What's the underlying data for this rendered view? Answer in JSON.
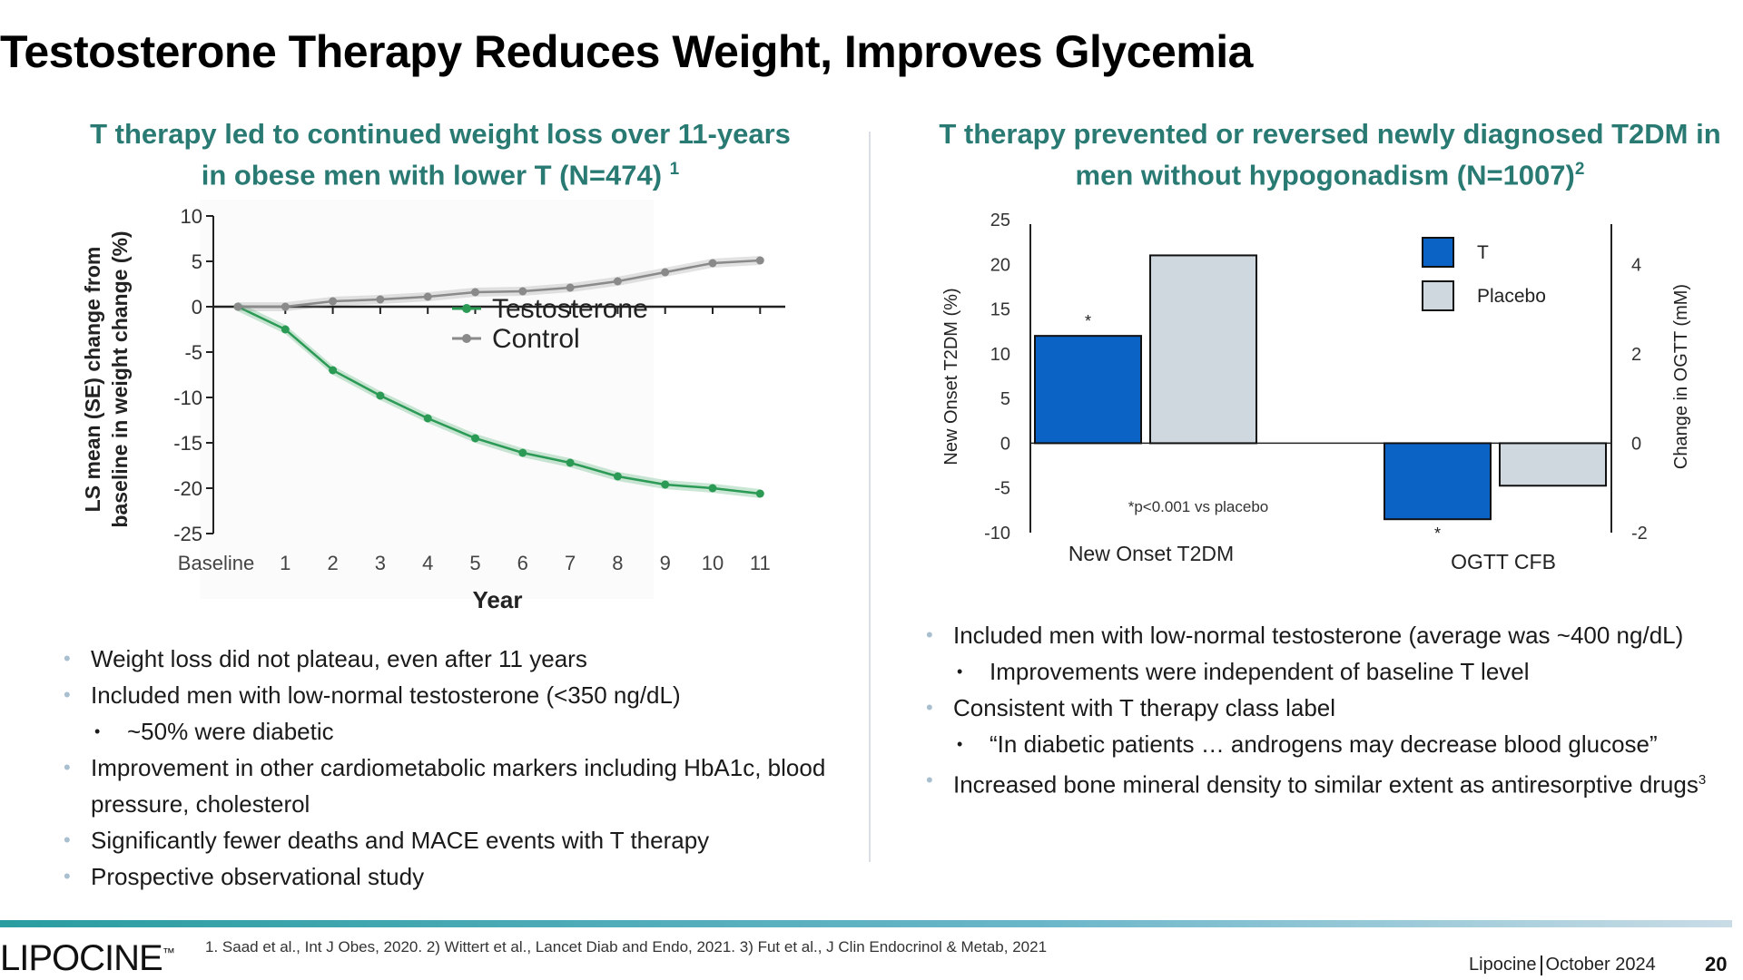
{
  "slide": {
    "title": "Testosterone Therapy Reduces Weight, Improves Glycemia",
    "page_number": "20",
    "footer_company": "Lipocine",
    "footer_date": "October 2024",
    "references": "1. Saad et al., Int J Obes, 2020. 2) Wittert et al., Lancet Diab and Endo, 2021. 3) Fut et al., J Clin Endocrinol & Metab, 2021",
    "logo_text": "LIPOCINE",
    "logo_mark": "™"
  },
  "left": {
    "subtitle_line1": "T therapy led to continued weight loss over 11-years",
    "subtitle_line2": "in obese men with lower T (N=474)",
    "subtitle_sup": "1",
    "bullets": [
      {
        "text": "Weight loss did not plateau, even after 11 years",
        "level": 1
      },
      {
        "text": "Included men with low-normal testosterone (<350 ng/dL)",
        "level": 1
      },
      {
        "text": "~50% were diabetic",
        "level": 2
      },
      {
        "text": "Improvement in other cardiometabolic markers including HbA1c, blood pressure, cholesterol",
        "level": 1
      },
      {
        "text": "Significantly fewer deaths and MACE events with T therapy",
        "level": 1
      },
      {
        "text": "Prospective observational study",
        "level": 1
      }
    ]
  },
  "right": {
    "subtitle_line1": "T therapy prevented or reversed newly diagnosed T2DM in",
    "subtitle_line2": "men without hypogonadism (N=1007)",
    "subtitle_sup": "2",
    "bullets": [
      {
        "text": "Included men with low-normal testosterone (average was ~400 ng/dL)",
        "level": 1,
        "sup": ""
      },
      {
        "text": "Improvements were independent of baseline T level",
        "level": 2,
        "sup": ""
      },
      {
        "text": "Consistent with T therapy class label",
        "level": 1,
        "sup": ""
      },
      {
        "text": "“In diabetic patients … androgens may decrease blood glucose”",
        "level": 2,
        "sup": ""
      },
      {
        "text": "Increased bone mineral density to similar extent as antiresorptive drugs",
        "level": 1,
        "sup": "3"
      }
    ]
  },
  "chart_data": [
    {
      "type": "line",
      "title": "",
      "xlabel": "Year",
      "ylabel_line1": "LS mean (SE) change from",
      "ylabel_line2": "baseline in weight change (%)",
      "categories": [
        "Baseline",
        "1",
        "2",
        "3",
        "4",
        "5",
        "6",
        "7",
        "8",
        "9",
        "10",
        "11"
      ],
      "yticks": [
        10,
        5,
        0,
        -5,
        -10,
        -15,
        -20,
        -25
      ],
      "ylim": [
        -25,
        10
      ],
      "legend_position": "center-right",
      "series": [
        {
          "name": "Testosterone",
          "color": "#2a9a55",
          "values": [
            0,
            -2.5,
            -7,
            -9.8,
            -12.3,
            -14.5,
            -16.1,
            -17.2,
            -18.7,
            -19.6,
            -20.0,
            -20.6
          ]
        },
        {
          "name": "Control",
          "color": "#8a8a8a",
          "values": [
            0,
            0.0,
            0.6,
            0.8,
            1.1,
            1.6,
            1.7,
            2.1,
            2.8,
            3.8,
            4.8,
            5.1
          ]
        }
      ]
    },
    {
      "type": "bar",
      "title": "",
      "categories": [
        "New Onset T2DM",
        "OGTT CFB"
      ],
      "ylabel_left": "New Onset T2DM (%)",
      "ylabel_right": "Change in OGTT (mM)",
      "yticks_left": [
        25,
        20,
        15,
        10,
        5,
        0,
        -5,
        -10
      ],
      "ylim_left": [
        -10,
        25
      ],
      "yticks_right": [
        4,
        2,
        0,
        -2
      ],
      "ylim_right": [
        -2,
        5
      ],
      "annotation": "*p<0.001 vs placebo",
      "significance_marker": "*",
      "legend_position": "top-right",
      "series": [
        {
          "name": "T",
          "color": "#0b63c5",
          "values": [
            12.0,
            -1.7
          ],
          "axis": [
            "left",
            "right"
          ],
          "significant": [
            true,
            true
          ]
        },
        {
          "name": "Placebo",
          "color": "#cfd8df",
          "values": [
            21.0,
            -0.95
          ],
          "axis": [
            "left",
            "right"
          ],
          "significant": [
            false,
            false
          ]
        }
      ]
    }
  ]
}
